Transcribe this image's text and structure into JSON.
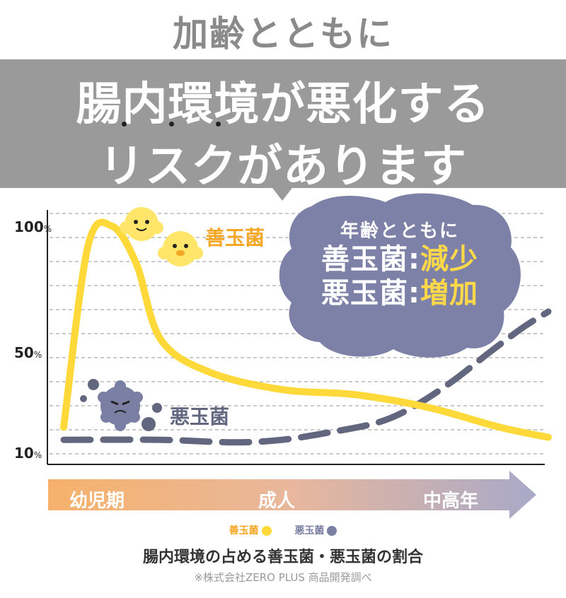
{
  "header": {
    "title": "加齢とともに",
    "banner_line1": "腸内環境が悪化する",
    "banner_line2": "リスクがあります"
  },
  "callout": {
    "subtitle": "年齢とともに",
    "good_label": "善玉菌:",
    "good_value": "減少",
    "bad_label": "悪玉菌:",
    "bad_value": "増加"
  },
  "chart_data": {
    "type": "line",
    "x": [
      "幼児期",
      "成人",
      "中高年"
    ],
    "yticks": [
      "100",
      "50",
      "10"
    ],
    "ytick_unit": "%",
    "ylim": [
      10,
      100
    ],
    "series": [
      {
        "name": "善玉菌",
        "color": "#ffd93a",
        "points": [
          [
            0,
            20
          ],
          [
            0.05,
            92
          ],
          [
            0.1,
            100
          ],
          [
            0.15,
            85
          ],
          [
            0.2,
            55
          ],
          [
            0.3,
            42
          ],
          [
            0.45,
            35
          ],
          [
            0.6,
            33
          ],
          [
            0.75,
            28
          ],
          [
            0.9,
            20
          ],
          [
            1.0,
            16
          ]
        ]
      },
      {
        "name": "悪玉菌",
        "color": "#62677f",
        "points": [
          [
            0,
            15
          ],
          [
            0.2,
            15
          ],
          [
            0.35,
            14
          ],
          [
            0.45,
            15
          ],
          [
            0.55,
            18
          ],
          [
            0.65,
            22
          ],
          [
            0.72,
            28
          ],
          [
            0.8,
            38
          ],
          [
            0.88,
            50
          ],
          [
            0.95,
            60
          ],
          [
            1.0,
            66
          ]
        ]
      }
    ],
    "grid": true,
    "series_labels": {
      "good": "善玉菌",
      "bad": "悪玉菌"
    }
  },
  "timeline": {
    "stages": [
      "幼児期",
      "成人",
      "中高年"
    ]
  },
  "legend": {
    "good": "善玉菌",
    "bad": "悪玉菌"
  },
  "caption": "腸内環境の占める善玉菌・悪玉菌の割合",
  "source": "※株式会社ZERO PLUS 商品開発調べ",
  "colors": {
    "banner": "#9a9a9a",
    "good": "#ffd93a",
    "bad": "#62677f",
    "cloud": "#7d81a8",
    "highlight": "#ffd84a"
  }
}
